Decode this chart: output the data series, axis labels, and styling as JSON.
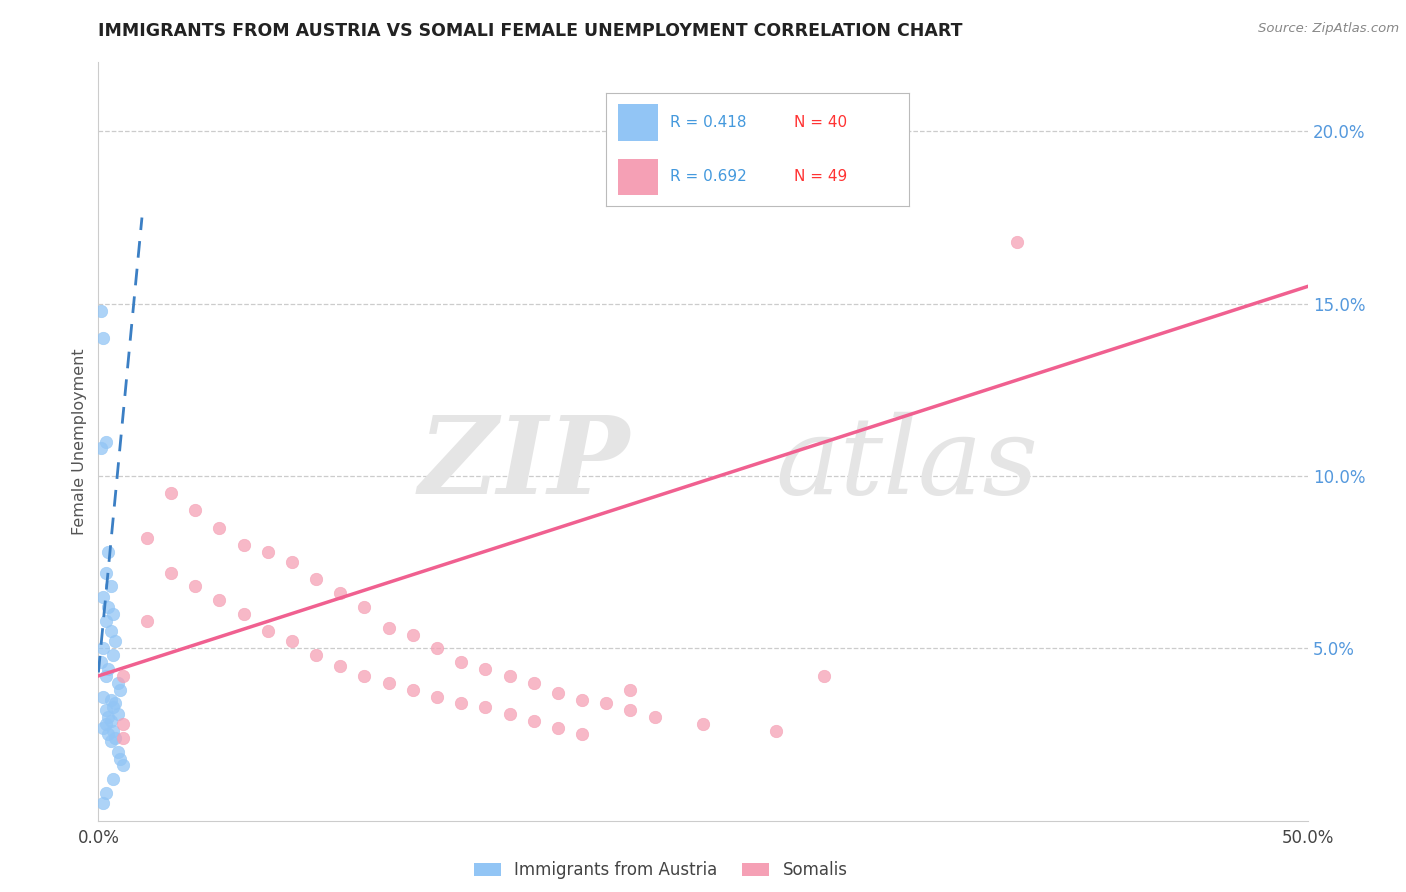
{
  "title": "IMMIGRANTS FROM AUSTRIA VS SOMALI FEMALE UNEMPLOYMENT CORRELATION CHART",
  "source": "Source: ZipAtlas.com",
  "ylabel": "Female Unemployment",
  "series1_label": "Immigrants from Austria",
  "series2_label": "Somalis",
  "austria_color": "#92C5F5",
  "somali_color": "#F5A0B5",
  "austria_line_color": "#3B7FC4",
  "somali_line_color": "#F06090",
  "r_color": "#4499DD",
  "n_color": "#FF3333",
  "legend_r1": "R = 0.418",
  "legend_n1": "N = 40",
  "legend_r2": "R = 0.692",
  "legend_n2": "N = 49",
  "austria_scatter": [
    [
      0.001,
      0.148
    ],
    [
      0.002,
      0.14
    ],
    [
      0.003,
      0.11
    ],
    [
      0.001,
      0.108
    ],
    [
      0.004,
      0.078
    ],
    [
      0.003,
      0.072
    ],
    [
      0.005,
      0.068
    ],
    [
      0.002,
      0.065
    ],
    [
      0.004,
      0.062
    ],
    [
      0.006,
      0.06
    ],
    [
      0.003,
      0.058
    ],
    [
      0.005,
      0.055
    ],
    [
      0.007,
      0.052
    ],
    [
      0.002,
      0.05
    ],
    [
      0.006,
      0.048
    ],
    [
      0.001,
      0.046
    ],
    [
      0.004,
      0.044
    ],
    [
      0.003,
      0.042
    ],
    [
      0.008,
      0.04
    ],
    [
      0.009,
      0.038
    ],
    [
      0.002,
      0.036
    ],
    [
      0.005,
      0.035
    ],
    [
      0.007,
      0.034
    ],
    [
      0.006,
      0.033
    ],
    [
      0.003,
      0.032
    ],
    [
      0.008,
      0.031
    ],
    [
      0.004,
      0.03
    ],
    [
      0.005,
      0.029
    ],
    [
      0.003,
      0.028
    ],
    [
      0.002,
      0.027
    ],
    [
      0.006,
      0.026
    ],
    [
      0.004,
      0.025
    ],
    [
      0.007,
      0.024
    ],
    [
      0.005,
      0.023
    ],
    [
      0.008,
      0.02
    ],
    [
      0.009,
      0.018
    ],
    [
      0.01,
      0.016
    ],
    [
      0.006,
      0.012
    ],
    [
      0.003,
      0.008
    ],
    [
      0.002,
      0.005
    ]
  ],
  "somali_scatter": [
    [
      0.38,
      0.168
    ],
    [
      0.03,
      0.095
    ],
    [
      0.04,
      0.09
    ],
    [
      0.05,
      0.085
    ],
    [
      0.02,
      0.082
    ],
    [
      0.06,
      0.08
    ],
    [
      0.07,
      0.078
    ],
    [
      0.08,
      0.075
    ],
    [
      0.03,
      0.072
    ],
    [
      0.09,
      0.07
    ],
    [
      0.04,
      0.068
    ],
    [
      0.1,
      0.066
    ],
    [
      0.05,
      0.064
    ],
    [
      0.11,
      0.062
    ],
    [
      0.06,
      0.06
    ],
    [
      0.02,
      0.058
    ],
    [
      0.12,
      0.056
    ],
    [
      0.07,
      0.055
    ],
    [
      0.13,
      0.054
    ],
    [
      0.08,
      0.052
    ],
    [
      0.14,
      0.05
    ],
    [
      0.09,
      0.048
    ],
    [
      0.15,
      0.046
    ],
    [
      0.1,
      0.045
    ],
    [
      0.16,
      0.044
    ],
    [
      0.11,
      0.042
    ],
    [
      0.17,
      0.042
    ],
    [
      0.3,
      0.042
    ],
    [
      0.12,
      0.04
    ],
    [
      0.18,
      0.04
    ],
    [
      0.13,
      0.038
    ],
    [
      0.19,
      0.037
    ],
    [
      0.14,
      0.036
    ],
    [
      0.2,
      0.035
    ],
    [
      0.15,
      0.034
    ],
    [
      0.21,
      0.034
    ],
    [
      0.16,
      0.033
    ],
    [
      0.22,
      0.032
    ],
    [
      0.17,
      0.031
    ],
    [
      0.23,
      0.03
    ],
    [
      0.18,
      0.029
    ],
    [
      0.25,
      0.028
    ],
    [
      0.19,
      0.027
    ],
    [
      0.28,
      0.026
    ],
    [
      0.2,
      0.025
    ],
    [
      0.01,
      0.028
    ],
    [
      0.01,
      0.024
    ],
    [
      0.22,
      0.038
    ],
    [
      0.01,
      0.042
    ]
  ],
  "xlim": [
    0.0,
    0.5
  ],
  "ylim": [
    0.0,
    0.22
  ],
  "yticks": [
    0.05,
    0.1,
    0.15,
    0.2
  ],
  "ytick_labels": [
    "5.0%",
    "10.0%",
    "15.0%",
    "20.0%"
  ],
  "xtick_vals": [
    0.0,
    0.5
  ],
  "xtick_labels": [
    "0.0%",
    "50.0%"
  ],
  "austria_trend_x": [
    0.0,
    0.018
  ],
  "austria_trend_y": [
    0.043,
    0.175
  ],
  "somali_trend_x": [
    0.0,
    0.5
  ],
  "somali_trend_y": [
    0.042,
    0.155
  ]
}
